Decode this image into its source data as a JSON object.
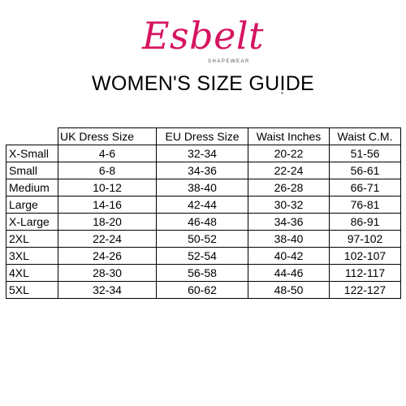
{
  "brand": {
    "logo_text": "Esbelt",
    "tagline": "SHAPEWEAR",
    "color": "#d6145f"
  },
  "title": "WOMEN'S SIZE GUIDE",
  "table": {
    "headers": [
      "UK Dress Size",
      "EU Dress Size",
      "Waist Inches",
      "Waist C.M."
    ],
    "rows": [
      {
        "label": "X-Small",
        "values": [
          "4-6",
          "32-34",
          "20-22",
          "51-56"
        ]
      },
      {
        "label": "Small",
        "values": [
          "6-8",
          "34-36",
          "22-24",
          "56-61"
        ]
      },
      {
        "label": "Medium",
        "values": [
          "10-12",
          "38-40",
          "26-28",
          "66-71"
        ]
      },
      {
        "label": "Large",
        "values": [
          "14-16",
          "42-44",
          "30-32",
          "76-81"
        ]
      },
      {
        "label": "X-Large",
        "values": [
          "18-20",
          "46-48",
          "34-36",
          "86-91"
        ]
      },
      {
        "label": "2XL",
        "values": [
          "22-24",
          "50-52",
          "38-40",
          "97-102"
        ]
      },
      {
        "label": "3XL",
        "values": [
          "24-26",
          "52-54",
          "40-42",
          "102-107"
        ]
      },
      {
        "label": "4XL",
        "values": [
          "28-30",
          "56-58",
          "44-46",
          "112-117"
        ]
      },
      {
        "label": "5XL",
        "values": [
          "32-34",
          "60-62",
          "48-50",
          "122-127"
        ]
      }
    ]
  }
}
